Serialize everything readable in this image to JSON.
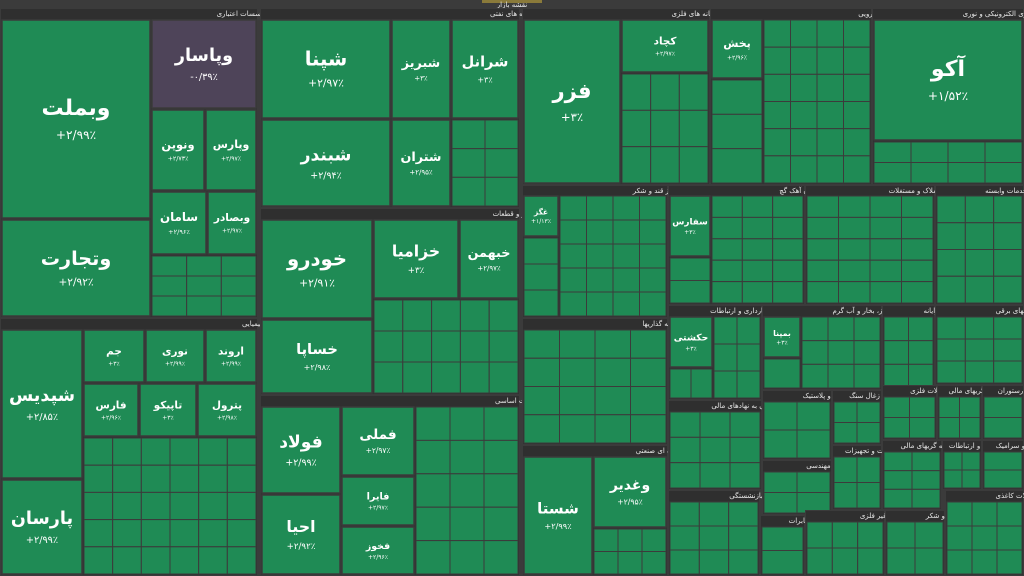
{
  "header": {
    "title": "نقشه بازار"
  },
  "sectors": [
    {
      "title": "بانکها و موسسات اعتباری",
      "tiles": [
        {
          "name": "وبملت",
          "change": "+۲/۹۹٪",
          "color": "#1f8b55"
        },
        {
          "name": "وپاسار",
          "change": "-۰/۳۹٪",
          "color": "#4e4459"
        },
        {
          "name": "وتجارت",
          "change": "+۲/۹۲٪",
          "color": "#1f8b55"
        },
        {
          "name": "ونوین",
          "change": "+۲/۷۳٪",
          "color": "#1f8b55"
        },
        {
          "name": "وپارس",
          "change": "+۲/۹۷٪",
          "color": "#1f8b55"
        },
        {
          "name": "سامان",
          "change": "+۲/۹۶٪",
          "color": "#1f8b55"
        },
        {
          "name": "وبصادر",
          "change": "+۲/۹۷٪",
          "color": "#1f8b55"
        }
      ]
    },
    {
      "title": "شیمیایی",
      "tiles": [
        {
          "name": "شپدیس",
          "change": "+۲/۸۵٪",
          "color": "#1f8b55"
        },
        {
          "name": "پارسان",
          "change": "+۲/۹۹٪",
          "color": "#1f8b55"
        },
        {
          "name": "جم",
          "change": "+۳٪",
          "color": "#1f8b55"
        },
        {
          "name": "نوری",
          "change": "+۲/۹۹٪",
          "color": "#1f8b55"
        },
        {
          "name": "اروند",
          "change": "+۲/۹۹٪",
          "color": "#1f8b55"
        },
        {
          "name": "فارس",
          "change": "+۲/۹۶٪",
          "color": "#1f8b55"
        },
        {
          "name": "تاپیکو",
          "change": "+۳٪",
          "color": "#1f8b55"
        },
        {
          "name": "پترول",
          "change": "+۲/۹۸٪",
          "color": "#1f8b55"
        }
      ]
    },
    {
      "title": "فرآورده های نفتی",
      "tiles": [
        {
          "name": "شپنا",
          "change": "+۲/۹۷٪",
          "color": "#1f8b55"
        },
        {
          "name": "شبریز",
          "change": "+۳٪",
          "color": "#1f8b55"
        },
        {
          "name": "شرانل",
          "change": "+۳٪",
          "color": "#1f8b55"
        },
        {
          "name": "شبندر",
          "change": "+۲/۹۴٪",
          "color": "#1f8b55"
        },
        {
          "name": "شتران",
          "change": "+۲/۹۵٪",
          "color": "#1f8b55"
        }
      ]
    },
    {
      "title": "خودرو و قطعات",
      "tiles": [
        {
          "name": "خودرو",
          "change": "+۲/۹۱٪",
          "color": "#1f8b55"
        },
        {
          "name": "خساپا",
          "change": "+۲/۹۸٪",
          "color": "#1f8b55"
        },
        {
          "name": "خزامیا",
          "change": "+۳٪",
          "color": "#1f8b55"
        },
        {
          "name": "خبهمن",
          "change": "+۲/۹۷٪",
          "color": "#1f8b55"
        }
      ]
    },
    {
      "title": "فلزات اساسی",
      "tiles": [
        {
          "name": "فولاد",
          "change": "+۲/۹۹٪",
          "color": "#1f8b55"
        },
        {
          "name": "احیا",
          "change": "+۲/۹۲٪",
          "color": "#1f8b55"
        },
        {
          "name": "فملی",
          "change": "+۲/۹۷٪",
          "color": "#1f8b55"
        },
        {
          "name": "فایرا",
          "change": "+۲/۹۷٪",
          "color": "#1f8b55"
        },
        {
          "name": "فخوز",
          "change": "+۲/۹۶٪",
          "color": "#1f8b55"
        }
      ]
    },
    {
      "title": "استخراج کانه های فلزی",
      "tiles": [
        {
          "name": "فزر",
          "change": "+۳٪",
          "color": "#1f8b55"
        },
        {
          "name": "کچاد",
          "change": "+۲/۹۷٪",
          "color": "#1f8b55"
        }
      ]
    },
    {
      "title": "غذایی بجز قند و شکر",
      "tiles": [
        {
          "name": "غگز",
          "change": "+۱/۱۳٪",
          "color": "#1f8b55"
        }
      ]
    },
    {
      "title": "سیمان آهک گچ",
      "tiles": [
        {
          "name": "سفارس",
          "change": "+۳٪",
          "color": "#1f8b55"
        }
      ]
    },
    {
      "title": "دارویی",
      "tiles": [
        {
          "name": "پخش",
          "change": "+۲/۹۶٪",
          "color": "#1f8b55"
        }
      ]
    },
    {
      "title": "محصولات کامپیوتری الکترونیکی و نوری",
      "tiles": [
        {
          "name": "آکو",
          "change": "+۱/۵۲٪",
          "color": "#1f8b55"
        }
      ]
    },
    {
      "title": "انبوه سازی املاک و مستغلات",
      "tiles": []
    },
    {
      "title": "زراعت و خدمات وابسته",
      "tiles": []
    },
    {
      "title": "سرمایه گذاریها",
      "tiles": []
    },
    {
      "title": "چندرشته ای صنعتی",
      "tiles": [
        {
          "name": "شستا",
          "change": "+۲/۹۹٪",
          "color": "#1f8b55"
        },
        {
          "name": "وغدیر",
          "change": "+۲/۹۵٪",
          "color": "#1f8b55"
        }
      ]
    },
    {
      "title": "حمل و نقل، انبارداری و ارتباطات",
      "tiles": [
        {
          "name": "حکشتی",
          "change": "+۳٪",
          "color": "#1f8b55"
        }
      ]
    },
    {
      "title": "فعالیتهای کمکی به نهادهای مالی",
      "tiles": []
    },
    {
      "title": "بیمه و بازنشستگی",
      "tiles": []
    },
    {
      "title": "عرضه برق، گاز، بخار و آب گرم",
      "tiles": [
        {
          "name": "بمپنا",
          "change": "+۳٪",
          "color": "#1f8b55"
        }
      ]
    },
    {
      "title": "رایانه",
      "tiles": []
    },
    {
      "title": "دستگاههای برقی",
      "tiles": []
    },
    {
      "title": "مخابرات",
      "tiles": []
    },
    {
      "title": "لاستیک و پلاستیک",
      "tiles": []
    },
    {
      "title": "استخراج زغال سنگ",
      "tiles": []
    },
    {
      "title": "محصولات فلزی",
      "tiles": []
    },
    {
      "title": "واسطه گریهای مالی",
      "tiles": []
    },
    {
      "title": "هتل و رستوران",
      "tiles": []
    },
    {
      "title": "فنی و مهندسی",
      "tiles": []
    },
    {
      "title": "ماشین آلات و تجهیزات",
      "tiles": []
    },
    {
      "title": "سایر واسطه گریهای مالی",
      "tiles": []
    },
    {
      "title": "اطلاعات و ارتباطات",
      "tiles": []
    },
    {
      "title": "کاشی و سرامیک",
      "tiles": []
    },
    {
      "title": "کانی غیر فلزی",
      "tiles": []
    },
    {
      "title": "قند و شکر",
      "tiles": []
    },
    {
      "title": "محصولات کاغذی",
      "tiles": []
    }
  ]
}
